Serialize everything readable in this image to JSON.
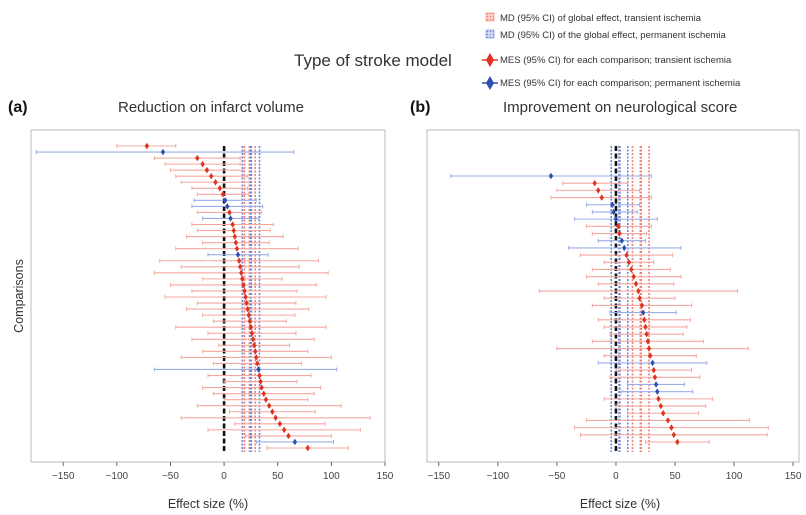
{
  "figure": {
    "title": "Type of stroke model",
    "legend": [
      {
        "label": "MD (95% CI) of global effect, transient ischemia",
        "color": "#f08070",
        "marker": "hatched-square"
      },
      {
        "label": "MD (95% CI) of the global effect, permanent ischemia",
        "color": "#6f86d6",
        "marker": "hatched-square"
      },
      {
        "label": "MES (95% CI) for each comparison; transient ischemia",
        "color": "#e0321e",
        "marker": "diamond"
      },
      {
        "label": "MES (95% CI) for each comparison; permanent ischemia",
        "color": "#2f4fb0",
        "marker": "diamond"
      }
    ],
    "colors": {
      "transient_ci": "#f4a8a0",
      "transient_point": "#e0321e",
      "permanent_ci": "#9aaee6",
      "permanent_point": "#2f4fb0",
      "zero_line": "#111111"
    }
  },
  "chart_data": [
    {
      "type": "forest",
      "letter": "(a)",
      "title": "Reduction on infarct volume",
      "xlabel": "Effect size (%)",
      "ylabel": "Comparisons",
      "xlim": [
        -180,
        150
      ],
      "xticks": [
        -150,
        -100,
        -50,
        0,
        50,
        100,
        150
      ],
      "global_effect": {
        "transient": {
          "mean": 24,
          "lower": 19,
          "upper": 29
        },
        "permanent": {
          "mean": 25,
          "lower": 17,
          "upper": 33
        }
      },
      "comparisons": [
        {
          "mean": -72,
          "lower": -100,
          "upper": -45,
          "model": "transient"
        },
        {
          "mean": -57,
          "lower": -175,
          "upper": 65,
          "model": "permanent"
        },
        {
          "mean": -25,
          "lower": -65,
          "upper": 15,
          "model": "transient"
        },
        {
          "mean": -20,
          "lower": -55,
          "upper": 15,
          "model": "transient"
        },
        {
          "mean": -16,
          "lower": -50,
          "upper": 18,
          "model": "transient"
        },
        {
          "mean": -12,
          "lower": -45,
          "upper": 22,
          "model": "transient"
        },
        {
          "mean": -8,
          "lower": -40,
          "upper": 24,
          "model": "transient"
        },
        {
          "mean": -4,
          "lower": -30,
          "upper": 22,
          "model": "transient"
        },
        {
          "mean": -1,
          "lower": -25,
          "upper": 23,
          "model": "transient"
        },
        {
          "mean": 1,
          "lower": -28,
          "upper": 30,
          "model": "permanent"
        },
        {
          "mean": 3,
          "lower": -30,
          "upper": 36,
          "model": "permanent"
        },
        {
          "mean": 5,
          "lower": -25,
          "upper": 35,
          "model": "transient"
        },
        {
          "mean": 6,
          "lower": -20,
          "upper": 32,
          "model": "permanent"
        },
        {
          "mean": 8,
          "lower": -30,
          "upper": 46,
          "model": "transient"
        },
        {
          "mean": 9,
          "lower": -25,
          "upper": 43,
          "model": "transient"
        },
        {
          "mean": 10,
          "lower": -35,
          "upper": 55,
          "model": "transient"
        },
        {
          "mean": 11,
          "lower": -20,
          "upper": 42,
          "model": "transient"
        },
        {
          "mean": 12,
          "lower": -45,
          "upper": 69,
          "model": "transient"
        },
        {
          "mean": 13,
          "lower": -15,
          "upper": 41,
          "model": "permanent"
        },
        {
          "mean": 14,
          "lower": -60,
          "upper": 88,
          "model": "transient"
        },
        {
          "mean": 15,
          "lower": -40,
          "upper": 70,
          "model": "transient"
        },
        {
          "mean": 16,
          "lower": -65,
          "upper": 97,
          "model": "transient"
        },
        {
          "mean": 17,
          "lower": -20,
          "upper": 54,
          "model": "transient"
        },
        {
          "mean": 18,
          "lower": -50,
          "upper": 86,
          "model": "transient"
        },
        {
          "mean": 19,
          "lower": -30,
          "upper": 68,
          "model": "transient"
        },
        {
          "mean": 20,
          "lower": -55,
          "upper": 95,
          "model": "transient"
        },
        {
          "mean": 21,
          "lower": -25,
          "upper": 67,
          "model": "transient"
        },
        {
          "mean": 22,
          "lower": -35,
          "upper": 79,
          "model": "transient"
        },
        {
          "mean": 23,
          "lower": -20,
          "upper": 66,
          "model": "transient"
        },
        {
          "mean": 24,
          "lower": -10,
          "upper": 58,
          "model": "transient"
        },
        {
          "mean": 25,
          "lower": -45,
          "upper": 95,
          "model": "transient"
        },
        {
          "mean": 26,
          "lower": -15,
          "upper": 67,
          "model": "transient"
        },
        {
          "mean": 27,
          "lower": -30,
          "upper": 84,
          "model": "transient"
        },
        {
          "mean": 28,
          "lower": -5,
          "upper": 61,
          "model": "transient"
        },
        {
          "mean": 29,
          "lower": -20,
          "upper": 78,
          "model": "transient"
        },
        {
          "mean": 30,
          "lower": -40,
          "upper": 100,
          "model": "transient"
        },
        {
          "mean": 31,
          "lower": -10,
          "upper": 72,
          "model": "transient"
        },
        {
          "mean": 32,
          "lower": -65,
          "upper": 105,
          "model": "permanent"
        },
        {
          "mean": 33,
          "lower": -15,
          "upper": 81,
          "model": "transient"
        },
        {
          "mean": 34,
          "lower": 0,
          "upper": 68,
          "model": "transient"
        },
        {
          "mean": 35,
          "lower": -20,
          "upper": 90,
          "model": "transient"
        },
        {
          "mean": 37,
          "lower": -10,
          "upper": 84,
          "model": "transient"
        },
        {
          "mean": 39,
          "lower": 0,
          "upper": 78,
          "model": "transient"
        },
        {
          "mean": 42,
          "lower": -25,
          "upper": 109,
          "model": "transient"
        },
        {
          "mean": 45,
          "lower": 5,
          "upper": 85,
          "model": "transient"
        },
        {
          "mean": 48,
          "lower": -40,
          "upper": 136,
          "model": "transient"
        },
        {
          "mean": 52,
          "lower": 10,
          "upper": 94,
          "model": "transient"
        },
        {
          "mean": 56,
          "lower": -15,
          "upper": 127,
          "model": "transient"
        },
        {
          "mean": 60,
          "lower": 20,
          "upper": 100,
          "model": "transient"
        },
        {
          "mean": 66,
          "lower": 30,
          "upper": 102,
          "model": "permanent"
        },
        {
          "mean": 78,
          "lower": 40,
          "upper": 116,
          "model": "transient"
        }
      ]
    },
    {
      "type": "forest",
      "letter": "(b)",
      "title": "Improvement on neurological score",
      "xlabel": "Effect size (%)",
      "ylabel": "",
      "xlim": [
        -160,
        155
      ],
      "xticks": [
        -150,
        -100,
        -50,
        0,
        50,
        100,
        150
      ],
      "global_effect": {
        "transient": {
          "mean": 21,
          "lower": 14,
          "upper": 28
        },
        "permanent": {
          "mean": 3,
          "lower": -4,
          "upper": 10
        }
      },
      "comparisons": [
        {
          "mean": -55,
          "lower": -140,
          "upper": 30,
          "model": "permanent"
        },
        {
          "mean": -18,
          "lower": -45,
          "upper": 10,
          "model": "transient"
        },
        {
          "mean": -15,
          "lower": -50,
          "upper": 20,
          "model": "transient"
        },
        {
          "mean": -12,
          "lower": -55,
          "upper": 30,
          "model": "transient"
        },
        {
          "mean": -3,
          "lower": -25,
          "upper": 20,
          "model": "permanent"
        },
        {
          "mean": -2,
          "lower": -20,
          "upper": 18,
          "model": "permanent"
        },
        {
          "mean": 0,
          "lower": -35,
          "upper": 35,
          "model": "permanent"
        },
        {
          "mean": 2,
          "lower": -25,
          "upper": 30,
          "model": "transient"
        },
        {
          "mean": 3,
          "lower": -20,
          "upper": 26,
          "model": "transient"
        },
        {
          "mean": 5,
          "lower": -15,
          "upper": 25,
          "model": "permanent"
        },
        {
          "mean": 7,
          "lower": -40,
          "upper": 55,
          "model": "permanent"
        },
        {
          "mean": 9,
          "lower": -30,
          "upper": 48,
          "model": "transient"
        },
        {
          "mean": 11,
          "lower": -10,
          "upper": 32,
          "model": "transient"
        },
        {
          "mean": 13,
          "lower": -20,
          "upper": 46,
          "model": "transient"
        },
        {
          "mean": 15,
          "lower": -25,
          "upper": 55,
          "model": "transient"
        },
        {
          "mean": 17,
          "lower": -15,
          "upper": 49,
          "model": "transient"
        },
        {
          "mean": 19,
          "lower": -65,
          "upper": 103,
          "model": "transient"
        },
        {
          "mean": 20,
          "lower": -10,
          "upper": 50,
          "model": "transient"
        },
        {
          "mean": 22,
          "lower": -20,
          "upper": 64,
          "model": "transient"
        },
        {
          "mean": 23,
          "lower": -5,
          "upper": 51,
          "model": "permanent"
        },
        {
          "mean": 24,
          "lower": -15,
          "upper": 63,
          "model": "transient"
        },
        {
          "mean": 25,
          "lower": -10,
          "upper": 60,
          "model": "transient"
        },
        {
          "mean": 26,
          "lower": -5,
          "upper": 57,
          "model": "transient"
        },
        {
          "mean": 27,
          "lower": -20,
          "upper": 74,
          "model": "transient"
        },
        {
          "mean": 28,
          "lower": -50,
          "upper": 112,
          "model": "transient"
        },
        {
          "mean": 29,
          "lower": -10,
          "upper": 68,
          "model": "transient"
        },
        {
          "mean": 31,
          "lower": -15,
          "upper": 77,
          "model": "permanent"
        },
        {
          "mean": 32,
          "lower": 0,
          "upper": 64,
          "model": "transient"
        },
        {
          "mean": 33,
          "lower": -5,
          "upper": 71,
          "model": "transient"
        },
        {
          "mean": 34,
          "lower": 10,
          "upper": 58,
          "model": "permanent"
        },
        {
          "mean": 35,
          "lower": 5,
          "upper": 65,
          "model": "permanent"
        },
        {
          "mean": 36,
          "lower": -10,
          "upper": 82,
          "model": "transient"
        },
        {
          "mean": 38,
          "lower": 0,
          "upper": 76,
          "model": "transient"
        },
        {
          "mean": 40,
          "lower": 10,
          "upper": 70,
          "model": "transient"
        },
        {
          "mean": 44,
          "lower": -25,
          "upper": 113,
          "model": "transient"
        },
        {
          "mean": 47,
          "lower": -35,
          "upper": 129,
          "model": "transient"
        },
        {
          "mean": 49,
          "lower": -30,
          "upper": 128,
          "model": "transient"
        },
        {
          "mean": 52,
          "lower": 25,
          "upper": 79,
          "model": "transient"
        }
      ]
    }
  ]
}
